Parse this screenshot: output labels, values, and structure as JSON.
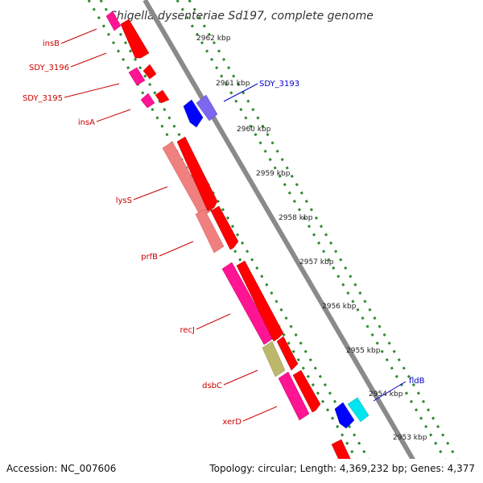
{
  "title": "Shigella dysenteriae Sd197, complete genome",
  "accession": "Accession: NC_007606",
  "topology": "Topology: circular; Length: 4,369,232 bp; Genes: 4,377",
  "ticks": [
    "2962 kbp",
    "2961 kbp",
    "2960 kbp",
    "2959 kbp",
    "2958 kbp",
    "2957 kbp",
    "2956 kbp",
    "2955 kbp",
    "2954 kbp",
    "2953 kbp"
  ],
  "genes_left": [
    "insB",
    "SDY_3196",
    "SDY_3195",
    "insA",
    "lysS",
    "prfB",
    "recJ",
    "dsbC",
    "xerD"
  ],
  "genes_right": [
    "SDY_3193",
    "fldB"
  ],
  "colors": {
    "gene_label_left": "#cc0000",
    "gene_label_right": "#0000cc",
    "backbone": "#888888",
    "tick_dash": "#2e8b2e",
    "cds_red": "#ff0000",
    "cds_pink": "#ff1493",
    "cds_salmon": "#f08080",
    "cds_olive": "#bdb76b",
    "cds_blue": "#0000ff",
    "cds_purple": "#7b68ee",
    "cds_cyan": "#00e5ee"
  }
}
